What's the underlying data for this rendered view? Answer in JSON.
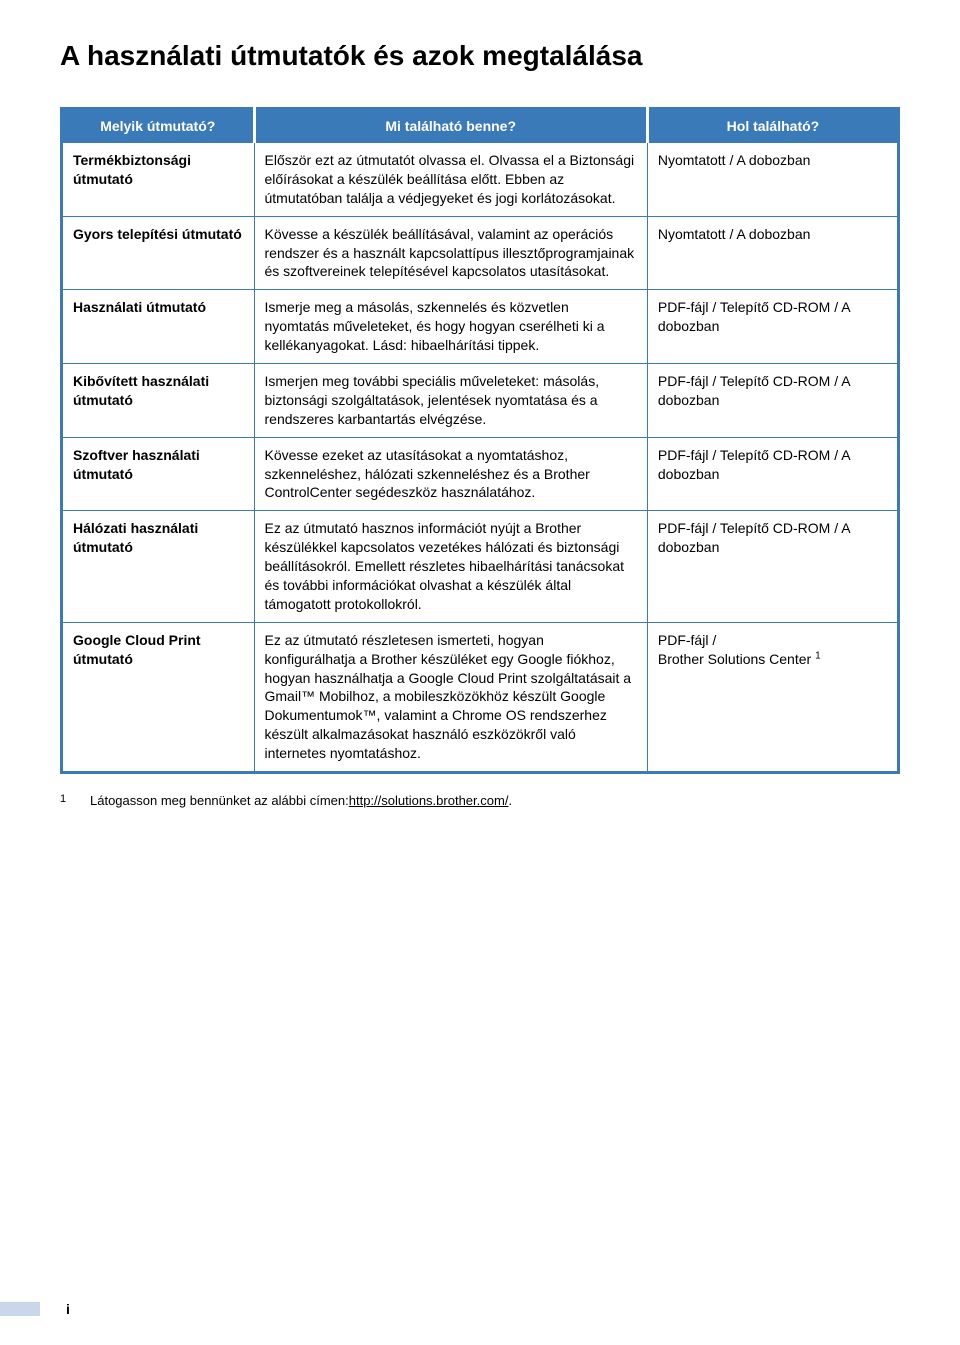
{
  "page": {
    "title": "A használati útmutatók és azok megtalálása",
    "page_number": "i"
  },
  "colors": {
    "table_border": "#3a7ab8",
    "header_bg": "#3a7ab8",
    "header_text": "#ffffff",
    "footer_block": "#c8d7ea",
    "text": "#000000",
    "background": "#ffffff"
  },
  "table": {
    "headers": {
      "col1": "Melyik útmutató?",
      "col2": "Mi található benne?",
      "col3": "Hol található?"
    },
    "rows": [
      {
        "name": "Termékbiztonsági útmutató",
        "desc": "Először ezt az útmutatót olvassa el. Olvassa el a Biztonsági előírásokat a készülék beállítása előtt. Ebben az útmutatóban találja a védjegyeket és jogi korlátozásokat.",
        "where": "Nyomtatott / A dobozban"
      },
      {
        "name": "Gyors telepítési útmutató",
        "desc": "Kövesse a készülék beállításával, valamint az operációs rendszer és a használt kapcsolattípus illesztőprogramjainak és szoftvereinek telepítésével kapcsolatos utasításokat.",
        "where": "Nyomtatott / A dobozban"
      },
      {
        "name": "Használati útmutató",
        "desc": "Ismerje meg a másolás, szkennelés és közvetlen nyomtatás műveleteket, és hogy hogyan cserélheti ki a kellékanyagokat. Lásd: hibaelhárítási tippek.",
        "where": "PDF-fájl / Telepítő CD-ROM / A dobozban"
      },
      {
        "name": "Kibővített használati útmutató",
        "desc": "Ismerjen meg további speciális műveleteket: másolás, biztonsági szolgáltatások, jelentések nyomtatása és a rendszeres karbantartás elvégzése.",
        "where": "PDF-fájl / Telepítő CD-ROM / A dobozban"
      },
      {
        "name": "Szoftver használati útmutató",
        "desc": "Kövesse ezeket az utasításokat a nyomtatáshoz, szkenneléshez, hálózati szkenneléshez és a Brother ControlCenter segédeszköz használatához.",
        "where": "PDF-fájl / Telepítő CD-ROM / A dobozban"
      },
      {
        "name": "Hálózati használati útmutató",
        "desc": "Ez az útmutató hasznos információt nyújt a Brother készülékkel kapcsolatos vezetékes hálózati és biztonsági beállításokról. Emellett részletes hibaelhárítási tanácsokat és további információkat olvashat a készülék által támogatott protokollokról.",
        "where": "PDF-fájl / Telepítő CD-ROM / A dobozban"
      },
      {
        "name": "Google Cloud Print útmutató",
        "desc": "Ez az útmutató részletesen ismerteti, hogyan konfigurálhatja a Brother készüléket egy Google fiókhoz, hogyan használhatja a Google Cloud Print szolgáltatásait a Gmail™ Mobilhoz, a mobileszközökhöz készült Google Dokumentumok™, valamint a Chrome OS rendszerhez készült alkalmazásokat használó eszközökről való internetes nyomtatáshoz.",
        "where_prefix": "PDF-fájl /",
        "where_line2": "Brother Solutions Center",
        "where_sup": "1"
      }
    ]
  },
  "footnote": {
    "marker": "1",
    "text_before": "Látogasson meg bennünket az alábbi címen:",
    "url": "http://solutions.brother.com/",
    "text_after": "."
  }
}
